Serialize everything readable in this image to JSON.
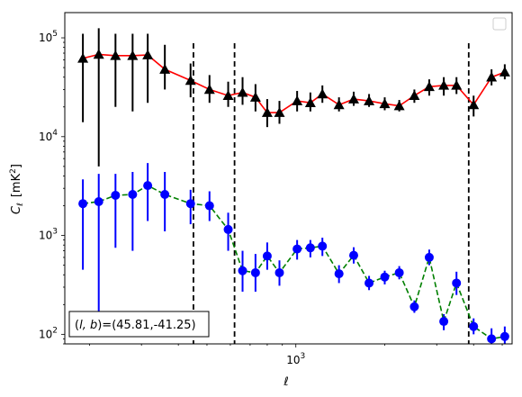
{
  "chart_data": {
    "type": "line",
    "xlabel": "ℓ",
    "ylabel_symbol": "C",
    "ylabel_sub": "ℓ",
    "ylabel_unit_pre": "[mK",
    "ylabel_unit_sup": "2",
    "ylabel_unit_post": "]",
    "xscale": "log",
    "yscale": "log",
    "xlim": [
      165,
      5400
    ],
    "ylim": [
      80,
      180000
    ],
    "x_tick_labels": [
      {
        "value": 1000,
        "base": "10",
        "exp": "3"
      }
    ],
    "y_tick_labels": [
      {
        "value": 100,
        "base": "10",
        "exp": "2"
      },
      {
        "value": 1000,
        "base": "10",
        "exp": "3"
      },
      {
        "value": 10000,
        "base": "10",
        "exp": "4"
      },
      {
        "value": 100000,
        "base": "10",
        "exp": "5"
      }
    ],
    "vlines": [
      450,
      620,
      3850
    ],
    "legend": {
      "placement": "upper right",
      "entries": []
    },
    "annotation": {
      "prefix": "(",
      "vars": "l, b",
      "mid": ")=",
      "coords": "(45.81,-41.25)"
    },
    "series": [
      {
        "color": "#ff0000",
        "marker": "triangle",
        "marker_color": "#000000",
        "errcolor": "#000000",
        "linestyle": "solid",
        "x": [
          190,
          215,
          245,
          280,
          315,
          360,
          440,
          510,
          590,
          660,
          730,
          800,
          880,
          1010,
          1120,
          1230,
          1400,
          1570,
          1770,
          2000,
          2240,
          2520,
          2830,
          3170,
          3500,
          4000,
          4600,
          5100
        ],
        "y": [
          62000,
          68000,
          66000,
          66000,
          67000,
          48000,
          37000,
          30000,
          26000,
          28000,
          25000,
          17500,
          17500,
          23000,
          22000,
          27000,
          21000,
          24000,
          23000,
          21500,
          20500,
          26000,
          32000,
          33000,
          33000,
          21000,
          40000,
          45000
        ],
        "ylo": [
          14000,
          5000,
          20000,
          18000,
          22000,
          30000,
          25000,
          22000,
          20000,
          21000,
          18000,
          12500,
          13500,
          18000,
          18000,
          22000,
          18000,
          20500,
          20000,
          18500,
          18000,
          22000,
          26000,
          26000,
          27000,
          16000,
          33000,
          38000
        ],
        "yhi": [
          110000,
          125000,
          110000,
          110000,
          110000,
          85000,
          55000,
          42000,
          36000,
          40000,
          34000,
          24000,
          23000,
          29000,
          28000,
          33000,
          25000,
          28500,
          27000,
          25000,
          23500,
          30000,
          38000,
          40000,
          40000,
          26000,
          48000,
          54000
        ]
      },
      {
        "color": "#008000",
        "marker": "circle",
        "marker_color": "#0000ff",
        "errcolor": "#0000ff",
        "linestyle": "dashed",
        "x": [
          190,
          215,
          245,
          280,
          315,
          360,
          440,
          510,
          590,
          660,
          730,
          800,
          880,
          1010,
          1120,
          1230,
          1400,
          1570,
          1770,
          2000,
          2240,
          2520,
          2830,
          3170,
          3500,
          4000,
          4600,
          5100
        ],
        "y": [
          2100,
          2200,
          2550,
          2600,
          3200,
          2600,
          2100,
          2000,
          1150,
          440,
          420,
          620,
          420,
          730,
          750,
          780,
          410,
          630,
          330,
          380,
          420,
          190,
          600,
          135,
          330,
          120,
          90,
          95
        ],
        "ylo": [
          450,
          150,
          750,
          700,
          1400,
          1100,
          1300,
          1400,
          700,
          270,
          270,
          450,
          310,
          570,
          600,
          620,
          330,
          520,
          280,
          320,
          360,
          165,
          500,
          110,
          250,
          100,
          70,
          75
        ],
        "yhi": [
          3700,
          4200,
          4200,
          4400,
          5400,
          4400,
          2900,
          2800,
          1700,
          700,
          650,
          850,
          560,
          900,
          900,
          950,
          500,
          760,
          390,
          440,
          490,
          220,
          720,
          160,
          430,
          145,
          115,
          120
        ]
      }
    ]
  }
}
